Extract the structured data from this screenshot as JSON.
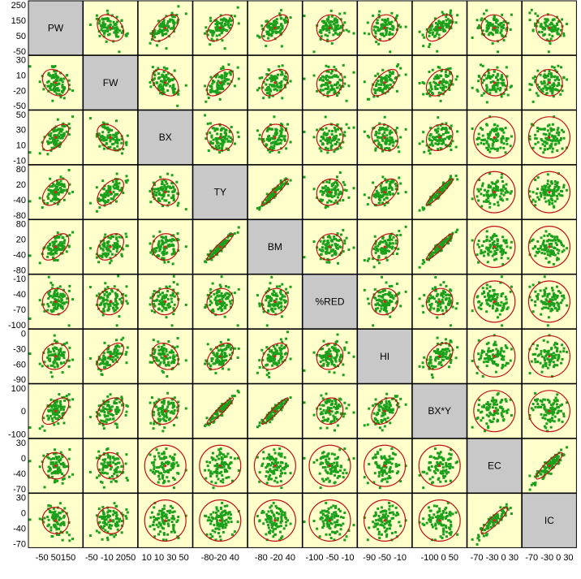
{
  "chart_data": {
    "type": "scatter",
    "subtype": "scatterplot-matrix",
    "variables": [
      "PW",
      "FW",
      "BX",
      "TY",
      "BM",
      "%RED",
      "HI",
      "BX*Y",
      "EC",
      "IC"
    ],
    "row_tick_labels": [
      [
        "250",
        "150",
        "50",
        "-50"
      ],
      [
        "30",
        "10",
        "-20",
        "-50"
      ],
      [
        "50",
        "30",
        "10",
        "-10"
      ],
      [
        "80",
        "20",
        "-40",
        "-80"
      ],
      [
        "80",
        "20",
        "-40",
        "-80"
      ],
      [
        "-10",
        "-40",
        "-70",
        "-100"
      ],
      [
        "0",
        "-30",
        "-60",
        "-90"
      ],
      [
        "100",
        "0",
        "-100"
      ],
      [
        "30",
        "0",
        "-40",
        "-70"
      ],
      [
        "30",
        "0",
        "-40",
        "-70"
      ]
    ],
    "column_tick_labels": [
      "-50 50150",
      "-50 -10 2050",
      "10 10 30 50",
      "-80-20 40",
      "-80 -20 40",
      "-100 -50 -10",
      "-90 -50 -10",
      "-100 0 50",
      "-70 -30 0 30",
      "-70 -30 0 30"
    ],
    "variable_ranges": {
      "PW": [
        -65,
        260
      ],
      "FW": [
        -55,
        35
      ],
      "BX": [
        -15,
        55
      ],
      "TY": [
        -95,
        85
      ],
      "BM": [
        -95,
        85
      ],
      "%RED": [
        -105,
        -5
      ],
      "HI": [
        -95,
        5
      ],
      "BX*Y": [
        -130,
        110
      ],
      "EC": [
        -80,
        40
      ],
      "IC": [
        -80,
        40
      ]
    },
    "correlations": [
      [
        1.0,
        -0.3,
        0.6,
        0.5,
        0.55,
        0.05,
        0.1,
        0.55,
        -0.05,
        -0.05
      ],
      [
        -0.3,
        1.0,
        -0.4,
        0.55,
        0.4,
        0.1,
        0.6,
        0.35,
        -0.05,
        -0.05
      ],
      [
        0.6,
        -0.4,
        1.0,
        -0.1,
        0.05,
        0.05,
        -0.2,
        0.2,
        0.0,
        0.0
      ],
      [
        0.5,
        0.55,
        -0.1,
        1.0,
        0.95,
        0.1,
        0.5,
        0.95,
        0.0,
        0.0
      ],
      [
        0.55,
        0.4,
        0.05,
        0.95,
        1.0,
        0.1,
        0.4,
        0.95,
        0.0,
        0.0
      ],
      [
        0.05,
        0.1,
        0.05,
        0.1,
        0.1,
        1.0,
        0.1,
        0.1,
        0.0,
        0.0
      ],
      [
        0.1,
        0.6,
        -0.2,
        0.5,
        0.4,
        0.1,
        1.0,
        0.4,
        0.0,
        0.0
      ],
      [
        0.55,
        0.35,
        0.2,
        0.95,
        0.95,
        0.1,
        0.4,
        1.0,
        0.0,
        0.0
      ],
      [
        -0.05,
        -0.05,
        0.0,
        0.0,
        0.0,
        0.0,
        0.0,
        0.0,
        1.0,
        0.9
      ],
      [
        -0.05,
        -0.05,
        0.0,
        0.0,
        0.0,
        0.0,
        0.0,
        0.0,
        0.9,
        1.0
      ]
    ],
    "point_color": "#1aa01a",
    "ellipse_color": "#c01010",
    "panel_background": "#ffffcc",
    "diagonal_background": "#c8c8c8",
    "grid": false
  }
}
